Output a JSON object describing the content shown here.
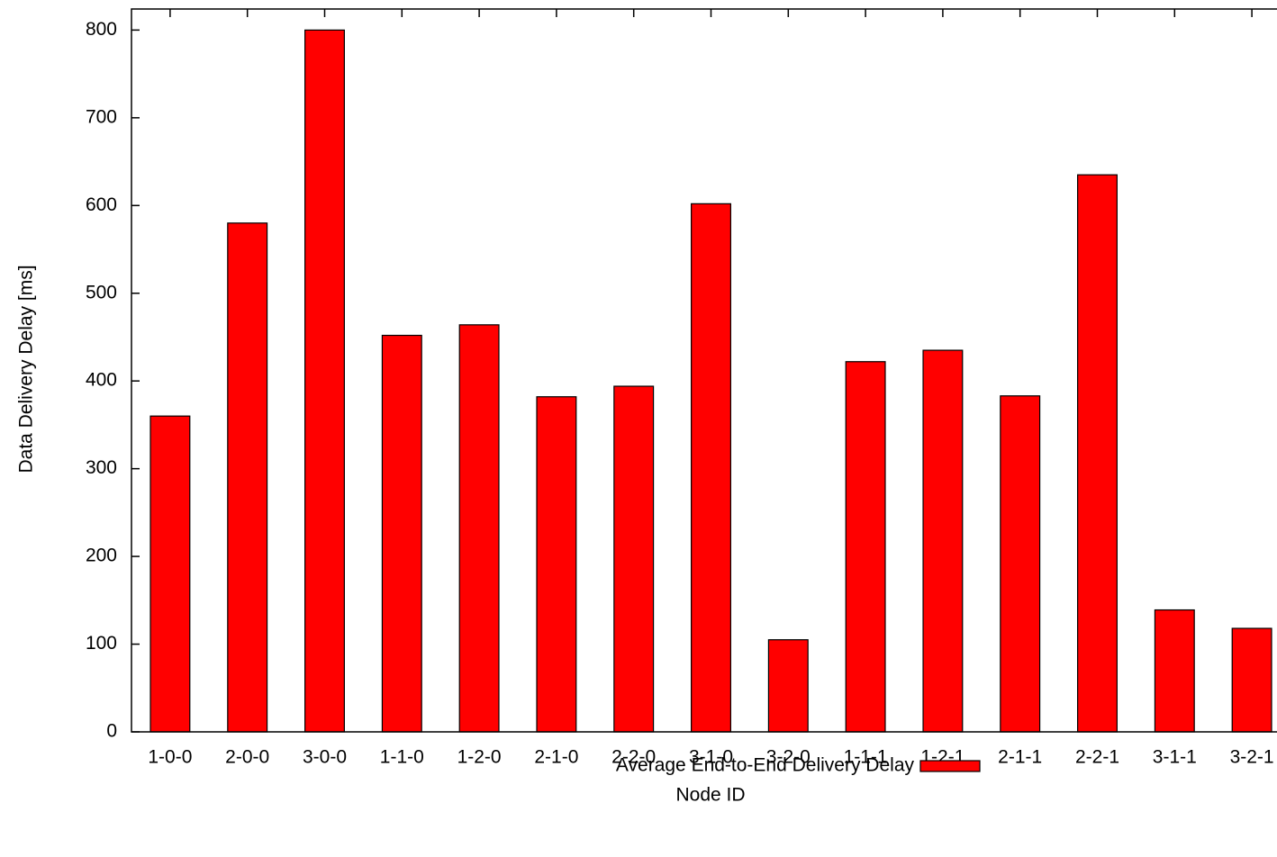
{
  "chart_data": {
    "type": "bar",
    "x_label": "Node ID",
    "y_label": "Data Delivery Delay [ms]",
    "categories": [
      "1-0-0",
      "2-0-0",
      "3-0-0",
      "1-1-0",
      "1-2-0",
      "2-1-0",
      "2-2-0",
      "3-1-0",
      "3-2-0",
      "1-1-1",
      "1-2-1",
      "2-1-1",
      "2-2-1",
      "3-1-1",
      "3-2-1"
    ],
    "series": [
      {
        "name": "Average End-to-End Delivery Delay",
        "color": "#ff0000",
        "values": [
          360,
          580,
          800,
          452,
          464,
          382,
          394,
          602,
          105,
          422,
          435,
          383,
          635,
          139,
          118
        ]
      }
    ],
    "ylim": [
      0,
      824
    ],
    "yticks": [
      0,
      100,
      200,
      300,
      400,
      500,
      600,
      700,
      800
    ],
    "grid": false
  }
}
